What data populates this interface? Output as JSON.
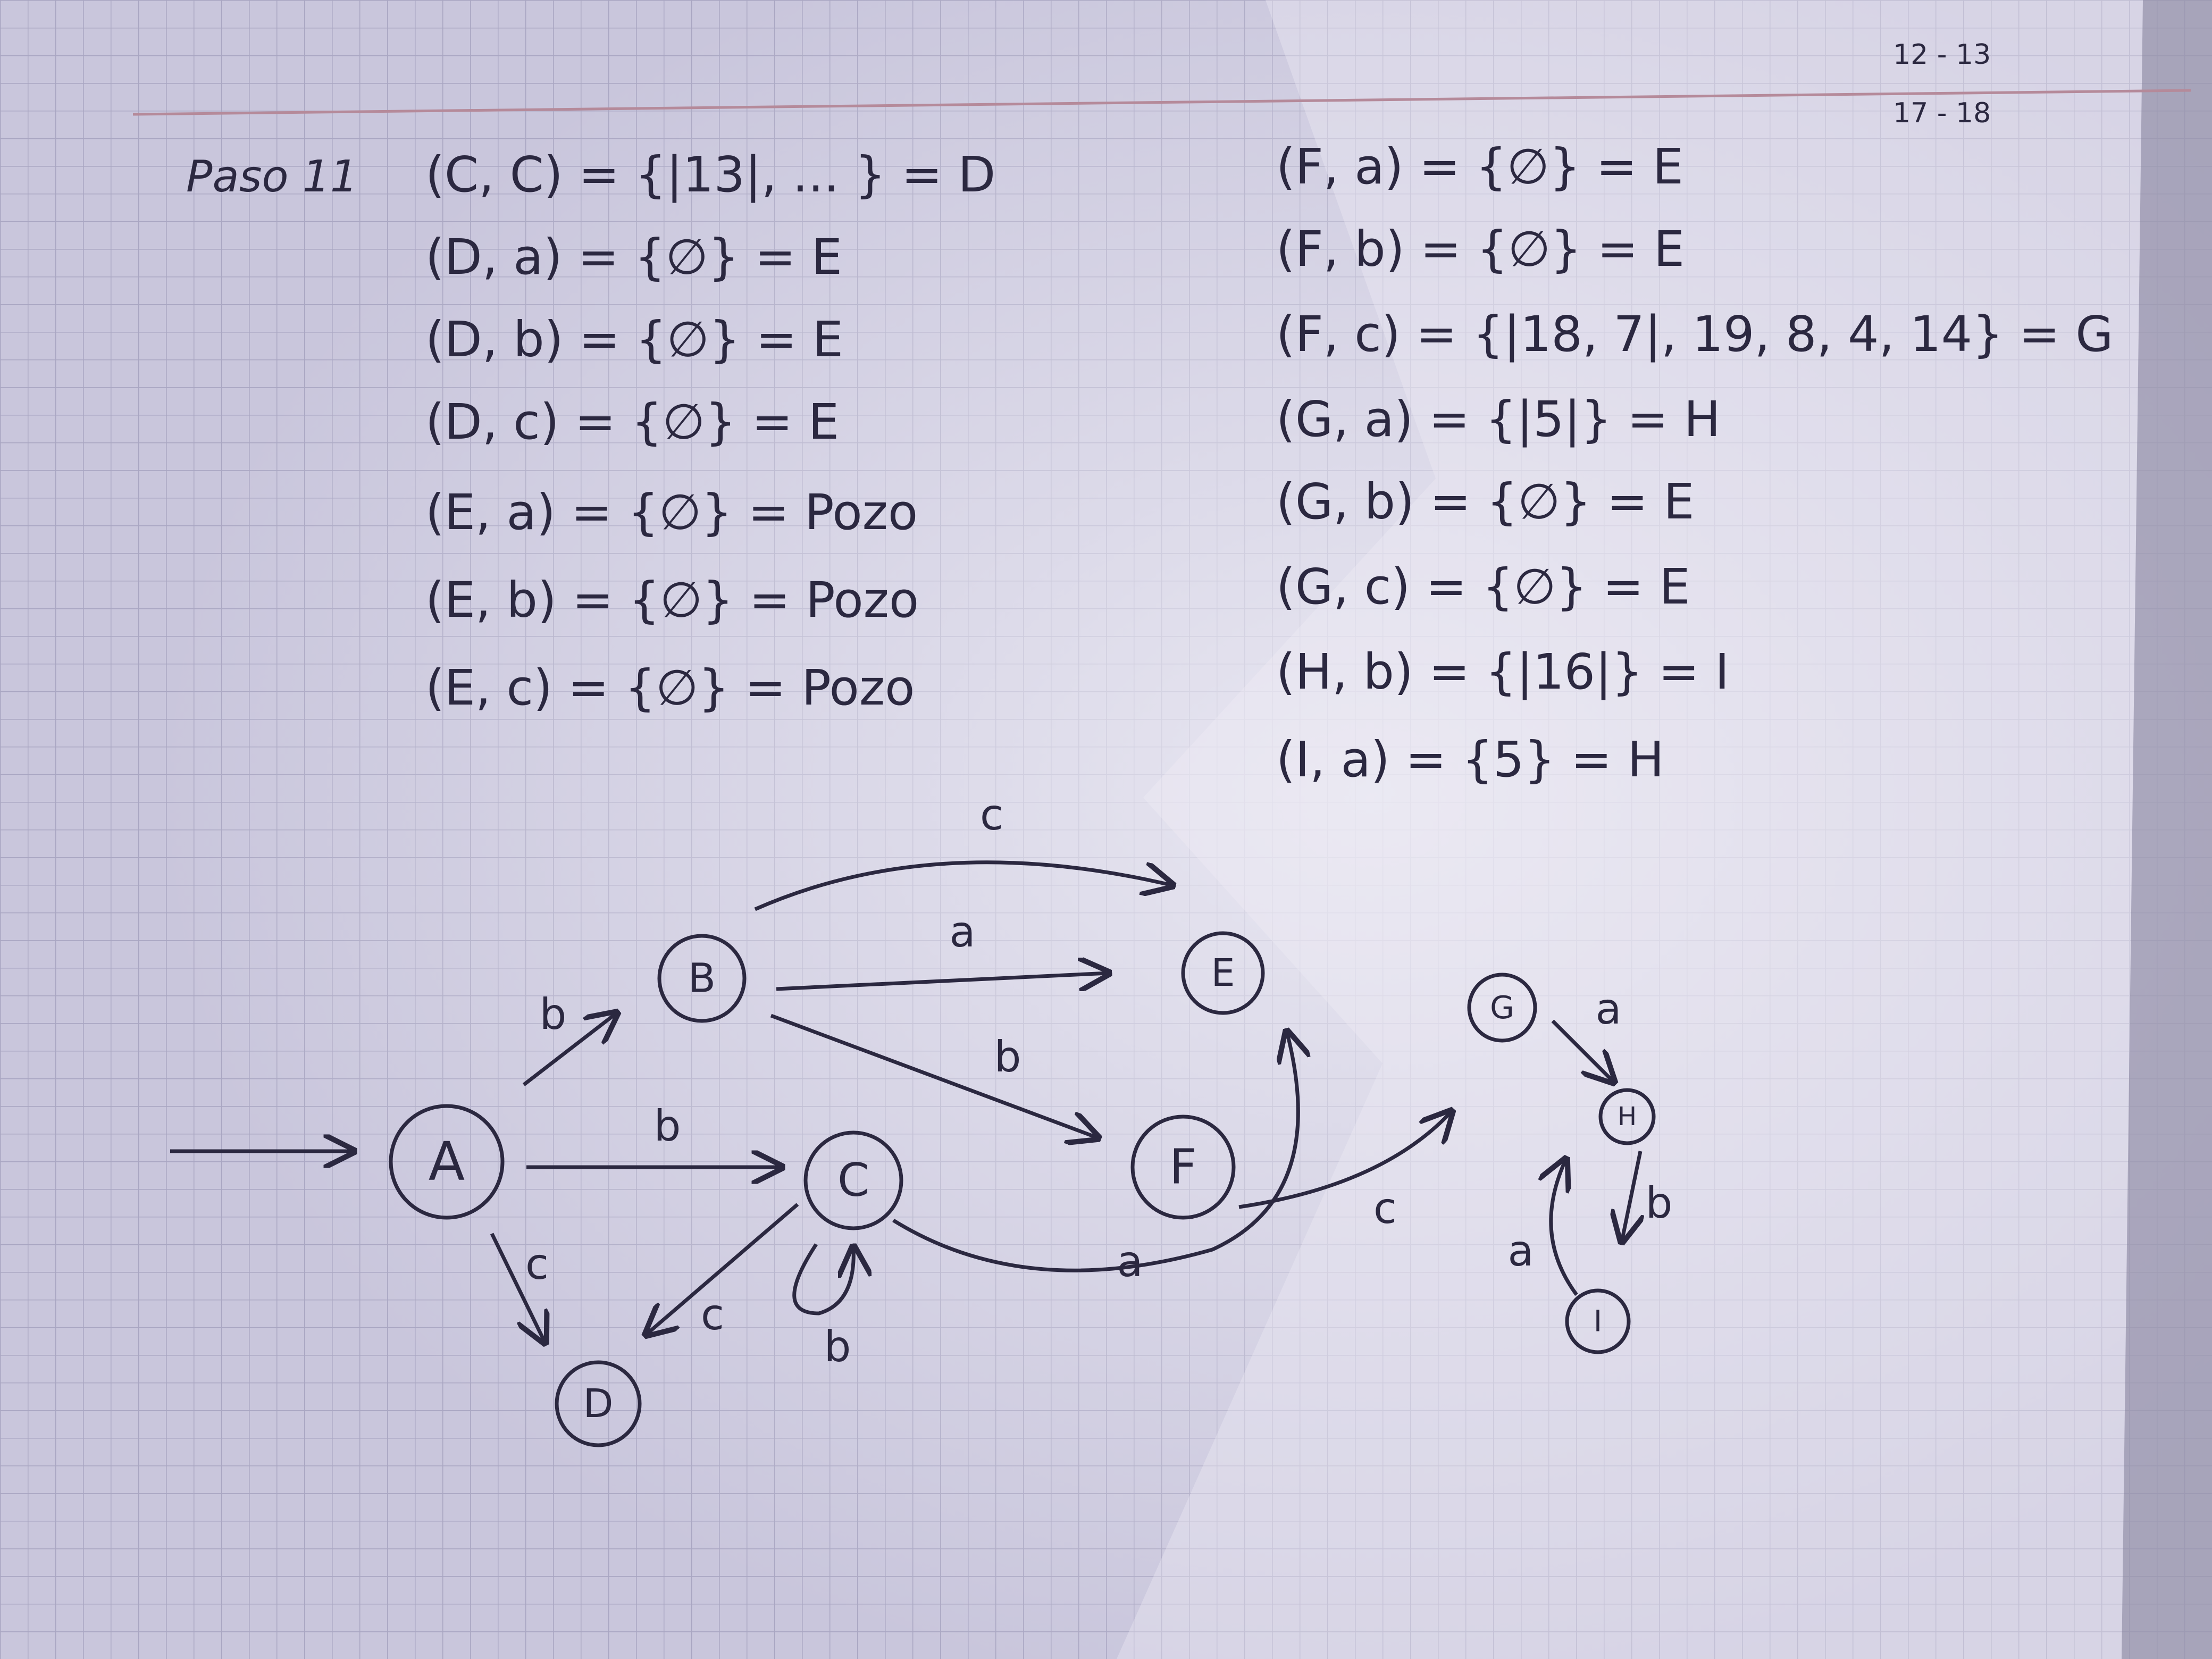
{
  "page": {
    "corner_marks": [
      "12 - 13",
      "17 - 18"
    ]
  },
  "step_label": "Paso 11",
  "left_equations": [
    "(C, C) = {|13|, ... } = D",
    "(D, a) = {∅} = E",
    "(D, b) = {∅} = E",
    "(D, c) = {∅} = E",
    "(E, a) = {∅} = Pozo",
    "(E, b) = {∅} = Pozo",
    "(E, c) = {∅} = Pozo"
  ],
  "right_equations": [
    "(F, a) = {∅} = E",
    "(F, b) = {∅} = E",
    "(F, c) = {|18, 7|, 19, 8, 4, 14} = G",
    "(G, a) = {|5|} = H",
    "(G, b) = {∅} = E",
    "(G, c) = {∅} = E",
    "(H, b) = {|16|} = I",
    "(I, a) = {5} = H"
  ],
  "diagram": {
    "states": [
      {
        "id": "A",
        "label": "A",
        "start": true
      },
      {
        "id": "B",
        "label": "B"
      },
      {
        "id": "C",
        "label": "C"
      },
      {
        "id": "D",
        "label": "D"
      },
      {
        "id": "E",
        "label": "E"
      },
      {
        "id": "F",
        "label": "F"
      },
      {
        "id": "G",
        "label": "G"
      },
      {
        "id": "H",
        "label": "H"
      },
      {
        "id": "I",
        "label": "I"
      }
    ],
    "transitions": [
      {
        "from": "A",
        "to": "B",
        "label": "b"
      },
      {
        "from": "A",
        "to": "C",
        "label": "b"
      },
      {
        "from": "A",
        "to": "D",
        "label": "c"
      },
      {
        "from": "B",
        "to": "E",
        "label": "c"
      },
      {
        "from": "B",
        "to": "E",
        "label": "a"
      },
      {
        "from": "B",
        "to": "F",
        "label": "b"
      },
      {
        "from": "C",
        "to": "D",
        "label": "c"
      },
      {
        "from": "C",
        "to": "C",
        "label": "b"
      },
      {
        "from": "C",
        "to": "E",
        "label": "a"
      },
      {
        "from": "F",
        "to": "G",
        "label": "c"
      },
      {
        "from": "G",
        "to": "H",
        "label": "a"
      },
      {
        "from": "H",
        "to": "I",
        "label": "b"
      },
      {
        "from": "I",
        "to": "H",
        "label": "a"
      }
    ]
  },
  "colors": {
    "paper": "#c9c6dc",
    "paper_light": "#e4e2ee",
    "grid": "#a9a6c2",
    "margin_line": "#b58a9a",
    "ink": "#2b2840"
  }
}
